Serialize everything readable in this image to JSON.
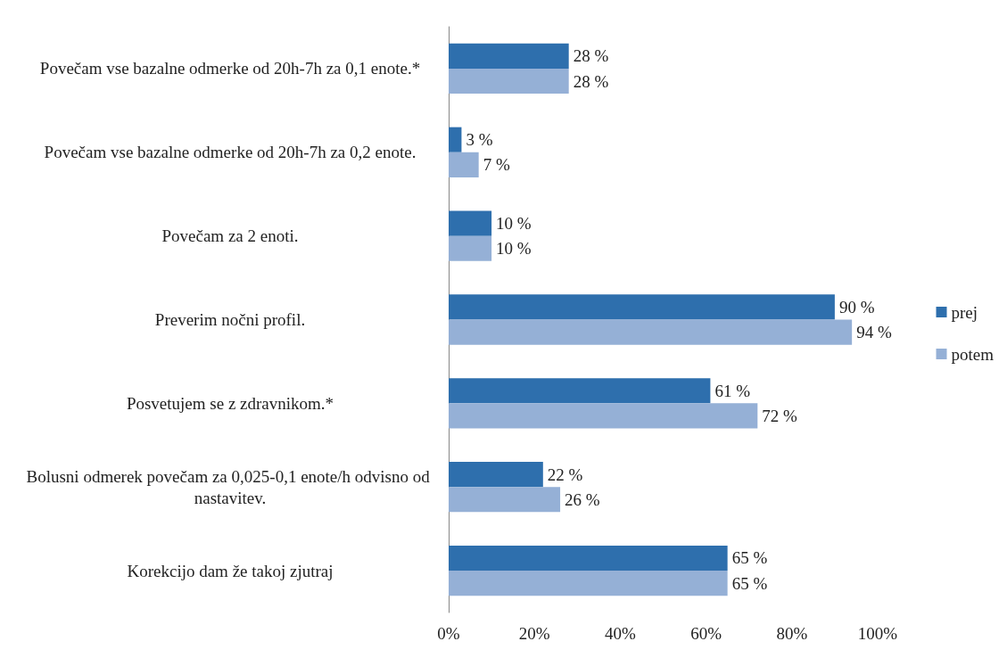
{
  "chart_data": {
    "type": "bar",
    "orientation": "horizontal",
    "categories": [
      "Povečam vse bazalne odmerke od 20h-7h za 0,1 enote.*",
      "Povečam vse bazalne odmerke od 20h-7h za 0,2 enote.",
      "Povečam za 2 enoti.",
      "Preverim nočni profil.",
      "Posvetujem se z zdravnikom.*",
      "Bolusni odmerek povečam za 0,025-0,1 enote/h odvisno od nastavitev.",
      "Korekcijo dam že takoj zjutraj"
    ],
    "series": [
      {
        "name": "prej",
        "color": "#2e6fad",
        "values": [
          28,
          3,
          10,
          90,
          61,
          22,
          65
        ],
        "value_labels": [
          "28 %",
          "3 %",
          "10 %",
          "90 %",
          "61 %",
          "22 %",
          "65 %"
        ]
      },
      {
        "name": "potem",
        "color": "#95b0d6",
        "values": [
          28,
          7,
          10,
          94,
          72,
          26,
          65
        ],
        "value_labels": [
          "28 %",
          "7 %",
          "10 %",
          "94 %",
          "72 %",
          "26 %",
          "65 %"
        ]
      }
    ],
    "xlim": [
      0,
      100
    ],
    "xticks": [
      {
        "value": 0,
        "label": "0%"
      },
      {
        "value": 20,
        "label": "20%"
      },
      {
        "value": 40,
        "label": "40%"
      },
      {
        "value": 60,
        "label": "60%"
      },
      {
        "value": 80,
        "label": "80%"
      },
      {
        "value": 100,
        "label": "100%"
      }
    ],
    "grid": false,
    "legend": "right"
  }
}
